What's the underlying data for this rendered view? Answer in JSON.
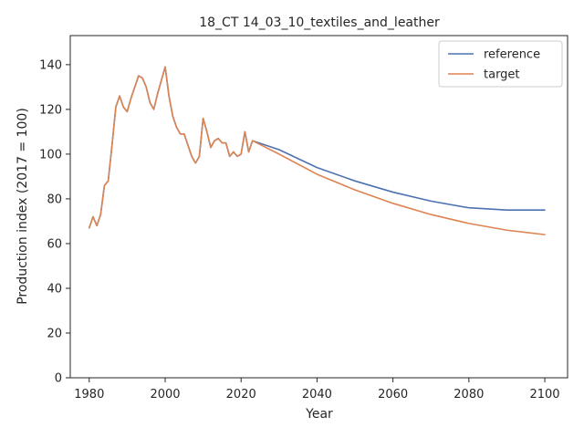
{
  "chart_data": {
    "type": "line",
    "title": "18_CT 14_03_10_textiles_and_leather",
    "xlabel": "Year",
    "ylabel": "Production index (2017 = 100)",
    "xlim": [
      1975,
      2106
    ],
    "ylim": [
      0,
      153
    ],
    "xticks": [
      1980,
      2000,
      2020,
      2040,
      2060,
      2080,
      2100
    ],
    "yticks": [
      0,
      20,
      40,
      60,
      80,
      100,
      120,
      140
    ],
    "grid": false,
    "legend": "top-right",
    "series": [
      {
        "name": "reference",
        "color": "#4c72b0",
        "x": [
          1980,
          1981,
          1982,
          1983,
          1984,
          1985,
          1986,
          1987,
          1988,
          1989,
          1990,
          1991,
          1992,
          1993,
          1994,
          1995,
          1996,
          1997,
          1998,
          1999,
          2000,
          2001,
          2002,
          2003,
          2004,
          2005,
          2006,
          2007,
          2008,
          2009,
          2010,
          2011,
          2012,
          2013,
          2014,
          2015,
          2016,
          2017,
          2018,
          2019,
          2020,
          2021,
          2022,
          2023,
          2030,
          2040,
          2050,
          2060,
          2070,
          2080,
          2090,
          2100
        ],
        "y": [
          67,
          72,
          68,
          73,
          86,
          88,
          104,
          121,
          126,
          121,
          119,
          125,
          130,
          135,
          134,
          130,
          123,
          120,
          127,
          133,
          139,
          126,
          117,
          112,
          109,
          109,
          104,
          99,
          96,
          99,
          116,
          110,
          103,
          106,
          107,
          105,
          105,
          99,
          101,
          99,
          100,
          110,
          101,
          106,
          102,
          94,
          88,
          83,
          79,
          76,
          75,
          75
        ]
      },
      {
        "name": "target",
        "color": "#dd8452",
        "x": [
          1980,
          1981,
          1982,
          1983,
          1984,
          1985,
          1986,
          1987,
          1988,
          1989,
          1990,
          1991,
          1992,
          1993,
          1994,
          1995,
          1996,
          1997,
          1998,
          1999,
          2000,
          2001,
          2002,
          2003,
          2004,
          2005,
          2006,
          2007,
          2008,
          2009,
          2010,
          2011,
          2012,
          2013,
          2014,
          2015,
          2016,
          2017,
          2018,
          2019,
          2020,
          2021,
          2022,
          2023,
          2030,
          2040,
          2050,
          2060,
          2070,
          2080,
          2090,
          2100
        ],
        "y": [
          67,
          72,
          68,
          73,
          86,
          88,
          104,
          121,
          126,
          121,
          119,
          125,
          130,
          135,
          134,
          130,
          123,
          120,
          127,
          133,
          139,
          126,
          117,
          112,
          109,
          109,
          104,
          99,
          96,
          99,
          116,
          110,
          103,
          106,
          107,
          105,
          105,
          99,
          101,
          99,
          100,
          110,
          101,
          106,
          100,
          91,
          84,
          78,
          73,
          69,
          66,
          64
        ]
      }
    ]
  }
}
